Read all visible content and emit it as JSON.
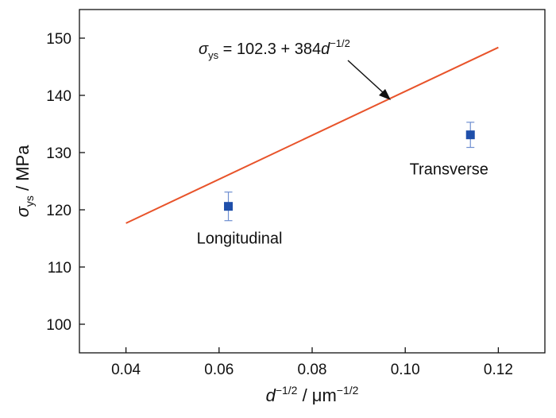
{
  "chart_data": {
    "type": "scatter",
    "xlabel": {
      "base": "d",
      "sup": "−1/2",
      "sep": " / μm",
      "unit_sup": "−1/2"
    },
    "ylabel": {
      "sym": "σ",
      "sub": "ys",
      "rest": " / MPa"
    },
    "xlim": [
      0.03,
      0.13
    ],
    "ylim": [
      95,
      155
    ],
    "xticks": [
      0.04,
      0.06,
      0.08,
      0.1,
      0.12
    ],
    "xtick_labels": [
      "0.04",
      "0.06",
      "0.08",
      "0.10",
      "0.12"
    ],
    "yticks": [
      100,
      110,
      120,
      130,
      140,
      150
    ],
    "ytick_labels": [
      "100",
      "110",
      "120",
      "130",
      "140",
      "150"
    ],
    "grid": false,
    "points": [
      {
        "label": "Longitudinal",
        "x": 0.062,
        "y": 120.6,
        "err": 2.5
      },
      {
        "label": "Transverse",
        "x": 0.114,
        "y": 133.1,
        "err": 2.2
      }
    ],
    "fit_line": {
      "intercept": 102.3,
      "slope": 384,
      "x": [
        0.04,
        0.12
      ],
      "equation": {
        "sym": "σ",
        "sub": "ys",
        "mid": " = 102.3 + 384",
        "var": "d",
        "sup": "−1/2"
      }
    },
    "colors": {
      "line": "#e8532a",
      "marker": "#1f4faa",
      "errorbar": "#6f8fd0"
    }
  }
}
